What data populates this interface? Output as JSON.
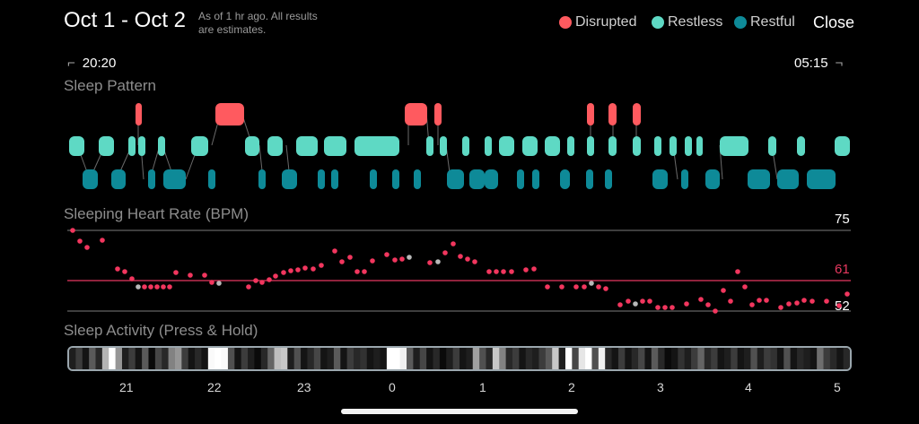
{
  "header": {
    "title": "Oct 1 - Oct 2",
    "subtitle_line1": "As of 1 hr ago. All results",
    "subtitle_line2": "are estimates.",
    "close_label": "Close"
  },
  "legend": [
    {
      "label": "Disrupted",
      "color": "#ff5a5f"
    },
    {
      "label": "Restless",
      "color": "#5ed9c4"
    },
    {
      "label": "Restful",
      "color": "#0e8a98"
    }
  ],
  "time_range": {
    "start": "20:20",
    "end": "05:15"
  },
  "sections": {
    "sleep_pattern": "Sleep Pattern",
    "heart_rate": "Sleeping Heart Rate (BPM)",
    "activity": "Sleep Activity (Press & Hold)"
  },
  "heart_rate": {
    "max_label": "75",
    "avg_label": "61",
    "min_label": "52",
    "max": 75,
    "avg": 61,
    "min": 52,
    "avg_color": "#e6385f"
  },
  "hour_ticks": [
    "21",
    "22",
    "23",
    "0",
    "1",
    "2",
    "3",
    "4",
    "5"
  ]
}
